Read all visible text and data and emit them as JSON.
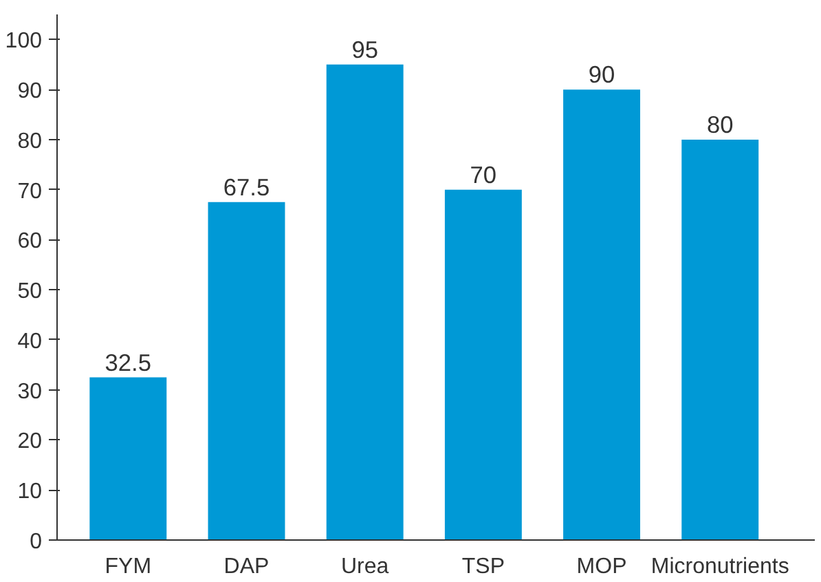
{
  "chart_data": {
    "type": "bar",
    "categories": [
      "FYM",
      "DAP",
      "Urea",
      "TSP",
      "MOP",
      "Micronutrients"
    ],
    "values": [
      32.5,
      67.5,
      95,
      70,
      90,
      80
    ],
    "color": "#0099d6",
    "data_labels": true,
    "ylim": [
      0,
      105
    ],
    "yticks": [
      0,
      10,
      20,
      30,
      40,
      50,
      60,
      70,
      80,
      90,
      100
    ],
    "grid": false
  }
}
